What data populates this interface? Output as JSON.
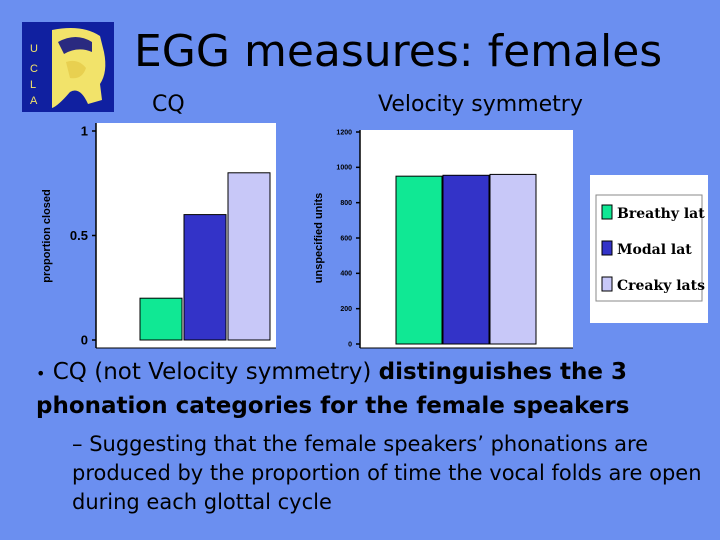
{
  "slide": {
    "title": "EGG measures: females",
    "logo_letters": [
      "U",
      "C",
      "L",
      "A"
    ],
    "cq_label": "CQ",
    "vs_label": "Velocity symmetry"
  },
  "chart_data": [
    {
      "type": "bar",
      "categories": [
        "Breathy lat",
        "Modal lat",
        "Creaky lats"
      ],
      "values": [
        0.2,
        0.6,
        0.8
      ],
      "ylabel": "proportion closed",
      "ylim": [
        0,
        1
      ],
      "yticks": [
        "0",
        "0.5",
        "1"
      ],
      "yticks_values": [
        0,
        0.5,
        1
      ],
      "colors": [
        "#10e894",
        "#3333c8",
        "#c8c8f8"
      ]
    },
    {
      "type": "bar",
      "categories": [
        "Breathy lat",
        "Modal lat",
        "Creaky lats"
      ],
      "values": [
        950,
        955,
        960
      ],
      "ylabel": "unspecified units",
      "ylim": [
        0,
        1200
      ],
      "yticks": [
        "0",
        "200",
        "400",
        "600",
        "800",
        "1000",
        "1200"
      ],
      "yticks_values": [
        0,
        200,
        400,
        600,
        800,
        1000,
        1200
      ],
      "colors": [
        "#10e894",
        "#3333c8",
        "#c8c8f8"
      ]
    }
  ],
  "legend": {
    "items": [
      {
        "label": "Breathy lat",
        "color": "#10e894"
      },
      {
        "label": "Modal lat",
        "color": "#3333c8"
      },
      {
        "label": "Creaky lats",
        "color": "#c8c8f8"
      }
    ]
  },
  "bullets": {
    "main_bullet": "•",
    "main_pre": "CQ",
    "main_mid": " (not Velocity symmetry) ",
    "main_post": "distinguishes the 3 phonation categories for the female speakers",
    "sub_dash": "–",
    "sub_text": "Suggesting that the female speakers’ phonations are produced by the proportion of time the vocal folds are open during each glottal cycle"
  }
}
